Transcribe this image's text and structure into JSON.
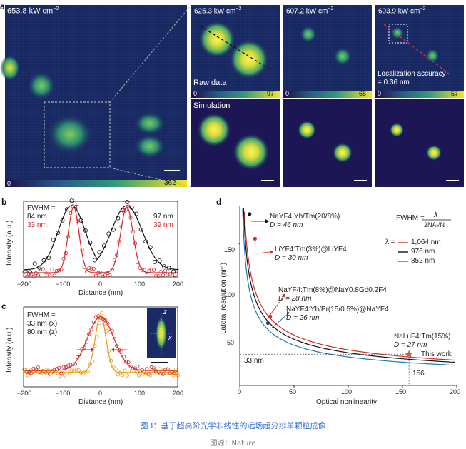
{
  "panel_labels": {
    "a": "a",
    "b": "b",
    "c": "c",
    "d": "d"
  },
  "panel_a": {
    "main": {
      "power": "653.8 kW cm",
      "exp": "−2",
      "cbar_min": "0",
      "cbar_max": "362"
    },
    "subpanels": [
      {
        "power": "625.3 kW cm",
        "exp": "−2",
        "cbar_min": "0",
        "cbar_max": "97",
        "label": "Raw data"
      },
      {
        "power": "607.2 kW cm",
        "exp": "−2",
        "cbar_min": "0",
        "cbar_max": "65",
        "label": ""
      },
      {
        "power": "603.9 kW cm",
        "exp": "−2",
        "cbar_min": "0",
        "cbar_max": "57",
        "label": "Localization accuracy",
        "label2": "= 0.36 nm"
      }
    ],
    "simulation_label": "Simulation"
  },
  "panel_b": {
    "ylabel": "Intensity (a.u.)",
    "xlabel": "Distance (nm)",
    "fwhm_label": "FWHM =",
    "left_black": "84 nm",
    "left_red": "33 nm",
    "right_black": "97 nm",
    "right_red": "39 nm",
    "xticks": [
      "−200",
      "−100",
      "0",
      "100",
      "200"
    ]
  },
  "panel_c": {
    "ylabel": "Intensity (a.u.)",
    "xlabel": "Distance (nm)",
    "fwhm_label": "FWHM =",
    "x_val": "33 nm (x)",
    "z_val": "80 nm (z)",
    "inset_z": "z",
    "inset_x": "x",
    "xticks": [
      "−200",
      "−100",
      "0",
      "100",
      "200"
    ]
  },
  "panel_d": {
    "ylabel": "Lateral resolution (nm)",
    "xlabel": "Optical nonlinearity",
    "xticks": [
      "0",
      "50",
      "100",
      "150",
      "200"
    ],
    "yticks": [
      "50",
      "100",
      "150"
    ],
    "formula_left": "FWHM =",
    "formula_num": "λ",
    "formula_den": "2NA√N",
    "lambda_prefix": "λ =",
    "legend": [
      {
        "label": "1,064 nm",
        "color": "#d62728"
      },
      {
        "label": "976 nm",
        "color": "#111111"
      },
      {
        "label": "852 nm",
        "color": "#1f77b4"
      }
    ],
    "ann1_mat": "NaYF4:Yb/Tm(20/8%)",
    "ann1_d": "D = 46 nm",
    "ann2_mat": "LiYF4:Tm(3%)@LiYF4",
    "ann2_d": "D = 30 nm",
    "ann3_mat": "NaYF4:Tm(8%)@NaY0.8Gd0.2F4",
    "ann3_d": "D = 28 nm",
    "ann4_mat": "NaYF4:Yb/Pr(15/0.5%)@NaYF4",
    "ann4_d": "D = 26 nm",
    "ann5_mat": "NaLuF4:Tm(15%)",
    "ann5_d": "D = 27 nm",
    "this_work": "This work",
    "h_label": "33 nm",
    "v_label": "156"
  },
  "chart_data": [
    {
      "type": "line",
      "panel": "d",
      "xlabel": "Optical nonlinearity",
      "ylabel": "Lateral resolution (nm)",
      "xlim": [
        0,
        200
      ],
      "ylim": [
        0,
        190
      ],
      "series": [
        {
          "name": "1,064 nm",
          "formula": "y = 376/sqrt(x)",
          "color": "#d62728"
        },
        {
          "name": "976 nm",
          "formula": "y = 345/sqrt(x)",
          "color": "#111111"
        },
        {
          "name": "852 nm",
          "formula": "y = 301/sqrt(x)",
          "color": "#1f77b4"
        }
      ],
      "points": [
        {
          "label": "NaYF4:Yb/Tm(20/8%)",
          "x": 9,
          "y": 181,
          "color": "#111111"
        },
        {
          "label": "LiYF4:Tm(3%)@LiYF4",
          "x": 14,
          "y": 155,
          "color": "#d62728"
        },
        {
          "label": "NaYF4:Tm(8%)@NaY0.8Gd0.2F4",
          "x": 28,
          "y": 73,
          "color": "#d62728"
        },
        {
          "label": "NaYF4:Yb/Pr(15/0.5%)@NaYF4",
          "x": 26,
          "y": 66,
          "color": "#1f3a6e"
        },
        {
          "label": "This work",
          "x": 156,
          "y": 33,
          "color": "#d9534f"
        }
      ]
    }
  ],
  "caption": {
    "main": "图3：基于超高阶光学非线性的远场超分辨单颗粒成像",
    "source": "图源：Nature"
  }
}
